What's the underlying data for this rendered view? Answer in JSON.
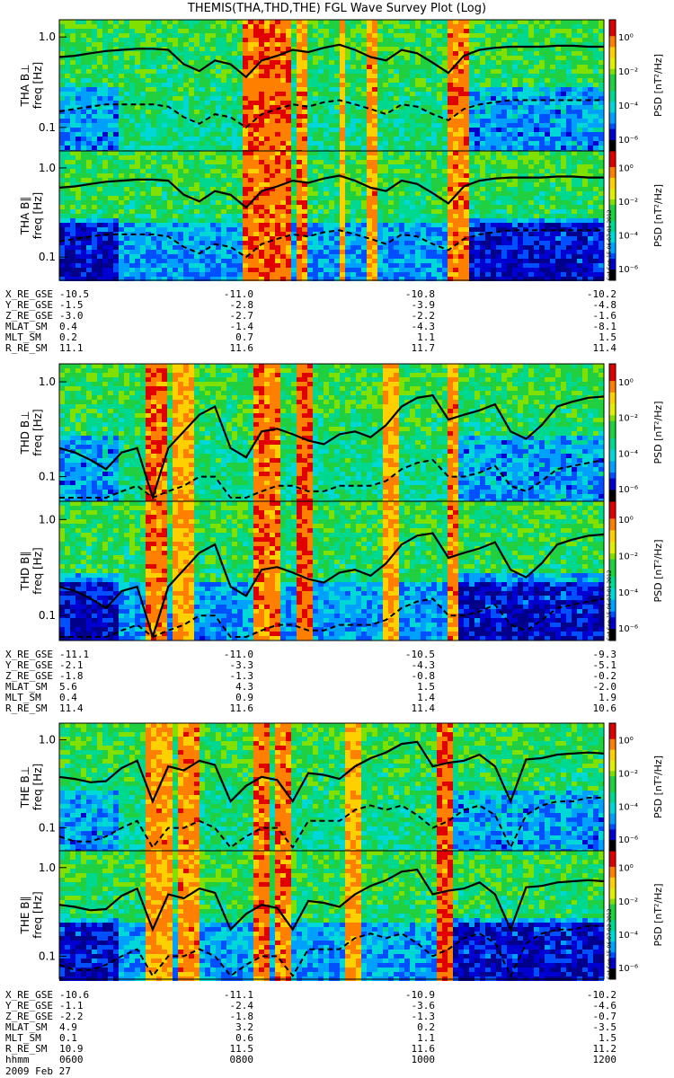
{
  "title": "THEMIS(THA,THD,THE) FGL Wave Survey Plot (Log)",
  "colorbar": {
    "label": "PSD [nT²/Hz]",
    "ticks": [
      "10⁰",
      "10⁻²",
      "10⁻⁴",
      "10⁻⁶"
    ]
  },
  "freq_label": "freq [Hz]",
  "yticks": [
    "1.0",
    "0.1"
  ],
  "stamps": [
    "Sat Sep 15 06:07:01 2012",
    "Sat Sep 15 06:07:01 2012",
    "Sat Sep 15 06:07:02 2012"
  ],
  "date": "2009 Feb 27",
  "colors": {
    "low": "#0000c8",
    "mid": "#00c8c8",
    "high": "#00d040",
    "peak": "#ffff00",
    "max": "#e00000"
  },
  "chart_data": [
    {
      "type": "heatmap",
      "probe": "THA",
      "panel": "THA B⊥",
      "ylabel": "freq [Hz]",
      "yscale": "log",
      "solid_line_hz": [
        0.6,
        0.62,
        0.66,
        0.7,
        0.72,
        0.74,
        0.74,
        0.72,
        0.5,
        0.42,
        0.55,
        0.5,
        0.36,
        0.55,
        0.62,
        0.72,
        0.68,
        0.76,
        0.82,
        0.72,
        0.6,
        0.55,
        0.72,
        0.66,
        0.52,
        0.4,
        0.62,
        0.72,
        0.76,
        0.78,
        0.78,
        0.78,
        0.8,
        0.8,
        0.78,
        0.78
      ],
      "dashed_line_hz": [
        0.15,
        0.16,
        0.17,
        0.18,
        0.18,
        0.18,
        0.18,
        0.17,
        0.13,
        0.11,
        0.14,
        0.13,
        0.1,
        0.14,
        0.16,
        0.18,
        0.17,
        0.19,
        0.2,
        0.18,
        0.16,
        0.14,
        0.18,
        0.17,
        0.14,
        0.12,
        0.16,
        0.18,
        0.19,
        0.2,
        0.2,
        0.2,
        0.2,
        0.2,
        0.2,
        0.2
      ]
    },
    {
      "type": "heatmap",
      "probe": "THA",
      "panel": "THA B∥",
      "ylabel": "freq [Hz]",
      "yscale": "log",
      "solid_line_hz": [
        0.6,
        0.62,
        0.66,
        0.7,
        0.72,
        0.74,
        0.74,
        0.72,
        0.5,
        0.42,
        0.55,
        0.5,
        0.36,
        0.55,
        0.62,
        0.72,
        0.68,
        0.76,
        0.82,
        0.72,
        0.6,
        0.55,
        0.72,
        0.66,
        0.52,
        0.4,
        0.62,
        0.72,
        0.76,
        0.78,
        0.78,
        0.78,
        0.8,
        0.8,
        0.78,
        0.78
      ],
      "dashed_line_hz": [
        0.15,
        0.16,
        0.17,
        0.18,
        0.18,
        0.18,
        0.18,
        0.17,
        0.13,
        0.11,
        0.14,
        0.13,
        0.1,
        0.14,
        0.16,
        0.18,
        0.17,
        0.19,
        0.2,
        0.18,
        0.16,
        0.14,
        0.18,
        0.17,
        0.14,
        0.12,
        0.16,
        0.18,
        0.19,
        0.2,
        0.2,
        0.2,
        0.2,
        0.2,
        0.2,
        0.2
      ]
    },
    {
      "type": "heatmap",
      "probe": "THD",
      "panel": "THD B⊥",
      "ylabel": "freq [Hz]",
      "yscale": "log",
      "solid_line_hz": [
        0.2,
        0.18,
        0.15,
        0.12,
        0.18,
        0.2,
        0.06,
        0.2,
        0.3,
        0.45,
        0.55,
        0.2,
        0.16,
        0.3,
        0.32,
        0.28,
        0.24,
        0.22,
        0.28,
        0.3,
        0.26,
        0.35,
        0.55,
        0.68,
        0.72,
        0.4,
        0.45,
        0.5,
        0.58,
        0.3,
        0.25,
        0.35,
        0.55,
        0.62,
        0.68,
        0.7
      ],
      "dashed_line_hz": [
        0.06,
        0.06,
        0.06,
        0.06,
        0.07,
        0.08,
        0.06,
        0.07,
        0.08,
        0.1,
        0.1,
        0.06,
        0.06,
        0.07,
        0.08,
        0.08,
        0.07,
        0.07,
        0.08,
        0.08,
        0.08,
        0.09,
        0.12,
        0.14,
        0.15,
        0.1,
        0.1,
        0.11,
        0.13,
        0.08,
        0.07,
        0.09,
        0.12,
        0.13,
        0.14,
        0.15
      ]
    },
    {
      "type": "heatmap",
      "probe": "THD",
      "panel": "THD B∥",
      "ylabel": "freq [Hz]",
      "yscale": "log",
      "solid_line_hz": [
        0.2,
        0.18,
        0.15,
        0.12,
        0.18,
        0.2,
        0.06,
        0.2,
        0.3,
        0.45,
        0.55,
        0.2,
        0.16,
        0.3,
        0.32,
        0.28,
        0.24,
        0.22,
        0.28,
        0.3,
        0.26,
        0.35,
        0.55,
        0.68,
        0.72,
        0.4,
        0.45,
        0.5,
        0.58,
        0.3,
        0.25,
        0.35,
        0.55,
        0.62,
        0.68,
        0.7
      ],
      "dashed_line_hz": [
        0.06,
        0.06,
        0.06,
        0.06,
        0.07,
        0.08,
        0.06,
        0.07,
        0.08,
        0.1,
        0.1,
        0.06,
        0.06,
        0.07,
        0.08,
        0.08,
        0.07,
        0.07,
        0.08,
        0.08,
        0.08,
        0.09,
        0.12,
        0.14,
        0.15,
        0.1,
        0.1,
        0.11,
        0.13,
        0.08,
        0.07,
        0.09,
        0.12,
        0.13,
        0.14,
        0.15
      ]
    },
    {
      "type": "heatmap",
      "probe": "THE",
      "panel": "THE B⊥",
      "ylabel": "freq [Hz]",
      "yscale": "log",
      "solid_line_hz": [
        0.38,
        0.36,
        0.33,
        0.34,
        0.48,
        0.58,
        0.2,
        0.5,
        0.45,
        0.58,
        0.52,
        0.2,
        0.3,
        0.38,
        0.35,
        0.2,
        0.42,
        0.4,
        0.36,
        0.5,
        0.62,
        0.72,
        0.9,
        0.95,
        0.5,
        0.55,
        0.58,
        0.68,
        0.5,
        0.2,
        0.6,
        0.62,
        0.68,
        0.7,
        0.72,
        0.7
      ],
      "dashed_line_hz": [
        0.08,
        0.07,
        0.07,
        0.08,
        0.1,
        0.12,
        0.06,
        0.1,
        0.1,
        0.12,
        0.1,
        0.06,
        0.08,
        0.1,
        0.1,
        0.06,
        0.12,
        0.12,
        0.12,
        0.16,
        0.18,
        0.16,
        0.18,
        0.14,
        0.1,
        0.12,
        0.16,
        0.18,
        0.14,
        0.06,
        0.14,
        0.18,
        0.2,
        0.2,
        0.22,
        0.22
      ]
    },
    {
      "type": "heatmap",
      "probe": "THE",
      "panel": "THE B∥",
      "ylabel": "freq [Hz]",
      "yscale": "log",
      "solid_line_hz": [
        0.38,
        0.36,
        0.33,
        0.34,
        0.48,
        0.58,
        0.2,
        0.5,
        0.45,
        0.58,
        0.52,
        0.2,
        0.3,
        0.38,
        0.35,
        0.2,
        0.42,
        0.4,
        0.36,
        0.5,
        0.62,
        0.72,
        0.9,
        0.95,
        0.5,
        0.55,
        0.58,
        0.68,
        0.5,
        0.2,
        0.6,
        0.62,
        0.68,
        0.7,
        0.72,
        0.7
      ],
      "dashed_line_hz": [
        0.08,
        0.07,
        0.07,
        0.08,
        0.1,
        0.12,
        0.06,
        0.1,
        0.1,
        0.12,
        0.1,
        0.06,
        0.08,
        0.1,
        0.1,
        0.06,
        0.12,
        0.12,
        0.12,
        0.16,
        0.18,
        0.16,
        0.18,
        0.14,
        0.1,
        0.12,
        0.16,
        0.18,
        0.14,
        0.06,
        0.14,
        0.18,
        0.2,
        0.2,
        0.22,
        0.22
      ]
    }
  ],
  "ephemeris": [
    {
      "rows": [
        {
          "label": "X_RE_GSE",
          "values": [
            "-10.5",
            "-11.0",
            "-10.8",
            "-10.2"
          ]
        },
        {
          "label": "Y_RE_GSE",
          "values": [
            "-1.5",
            "-2.8",
            "-3.9",
            "-4.8"
          ]
        },
        {
          "label": "Z_RE_GSE",
          "values": [
            "-3.0",
            "-2.7",
            "-2.2",
            "-1.6"
          ]
        },
        {
          "label": "MLAT_SM",
          "values": [
            "0.4",
            "-1.4",
            "-4.3",
            "-8.1"
          ]
        },
        {
          "label": "MLT_SM",
          "values": [
            "0.2",
            "0.7",
            "1.1",
            "1.5"
          ]
        },
        {
          "label": "R_RE_SM",
          "values": [
            "11.1",
            "11.6",
            "11.7",
            "11.4"
          ]
        }
      ]
    },
    {
      "rows": [
        {
          "label": "X_RE_GSE",
          "values": [
            "-11.1",
            "-11.0",
            "-10.5",
            "-9.3"
          ]
        },
        {
          "label": "Y_RE_GSE",
          "values": [
            "-2.1",
            "-3.3",
            "-4.3",
            "-5.1"
          ]
        },
        {
          "label": "Z_RE_GSE",
          "values": [
            "-1.8",
            "-1.3",
            "-0.8",
            "-0.2"
          ]
        },
        {
          "label": "MLAT_SM",
          "values": [
            "5.6",
            "4.3",
            "1.5",
            "-2.0"
          ]
        },
        {
          "label": "MLT_SM",
          "values": [
            "0.4",
            "0.9",
            "1.4",
            "1.9"
          ]
        },
        {
          "label": "R_RE_SM",
          "values": [
            "11.4",
            "11.6",
            "11.4",
            "10.6"
          ]
        }
      ]
    },
    {
      "rows": [
        {
          "label": "X_RE_GSE",
          "values": [
            "-10.6",
            "-11.1",
            "-10.9",
            "-10.2"
          ]
        },
        {
          "label": "Y_RE_GSE",
          "values": [
            "-1.1",
            "-2.4",
            "-3.6",
            "-4.6"
          ]
        },
        {
          "label": "Z_RE_GSE",
          "values": [
            "-2.2",
            "-1.8",
            "-1.3",
            "-0.7"
          ]
        },
        {
          "label": "MLAT_SM",
          "values": [
            "4.9",
            "3.2",
            "0.2",
            "-3.5"
          ]
        },
        {
          "label": "MLT_SM",
          "values": [
            "0.1",
            "0.6",
            "1.1",
            "1.5"
          ]
        },
        {
          "label": "R_RE_SM",
          "values": [
            "10.9",
            "11.5",
            "11.6",
            "11.2"
          ]
        },
        {
          "label": "hhmm",
          "values": [
            "0600",
            "0800",
            "1000",
            "1200"
          ]
        }
      ]
    }
  ]
}
